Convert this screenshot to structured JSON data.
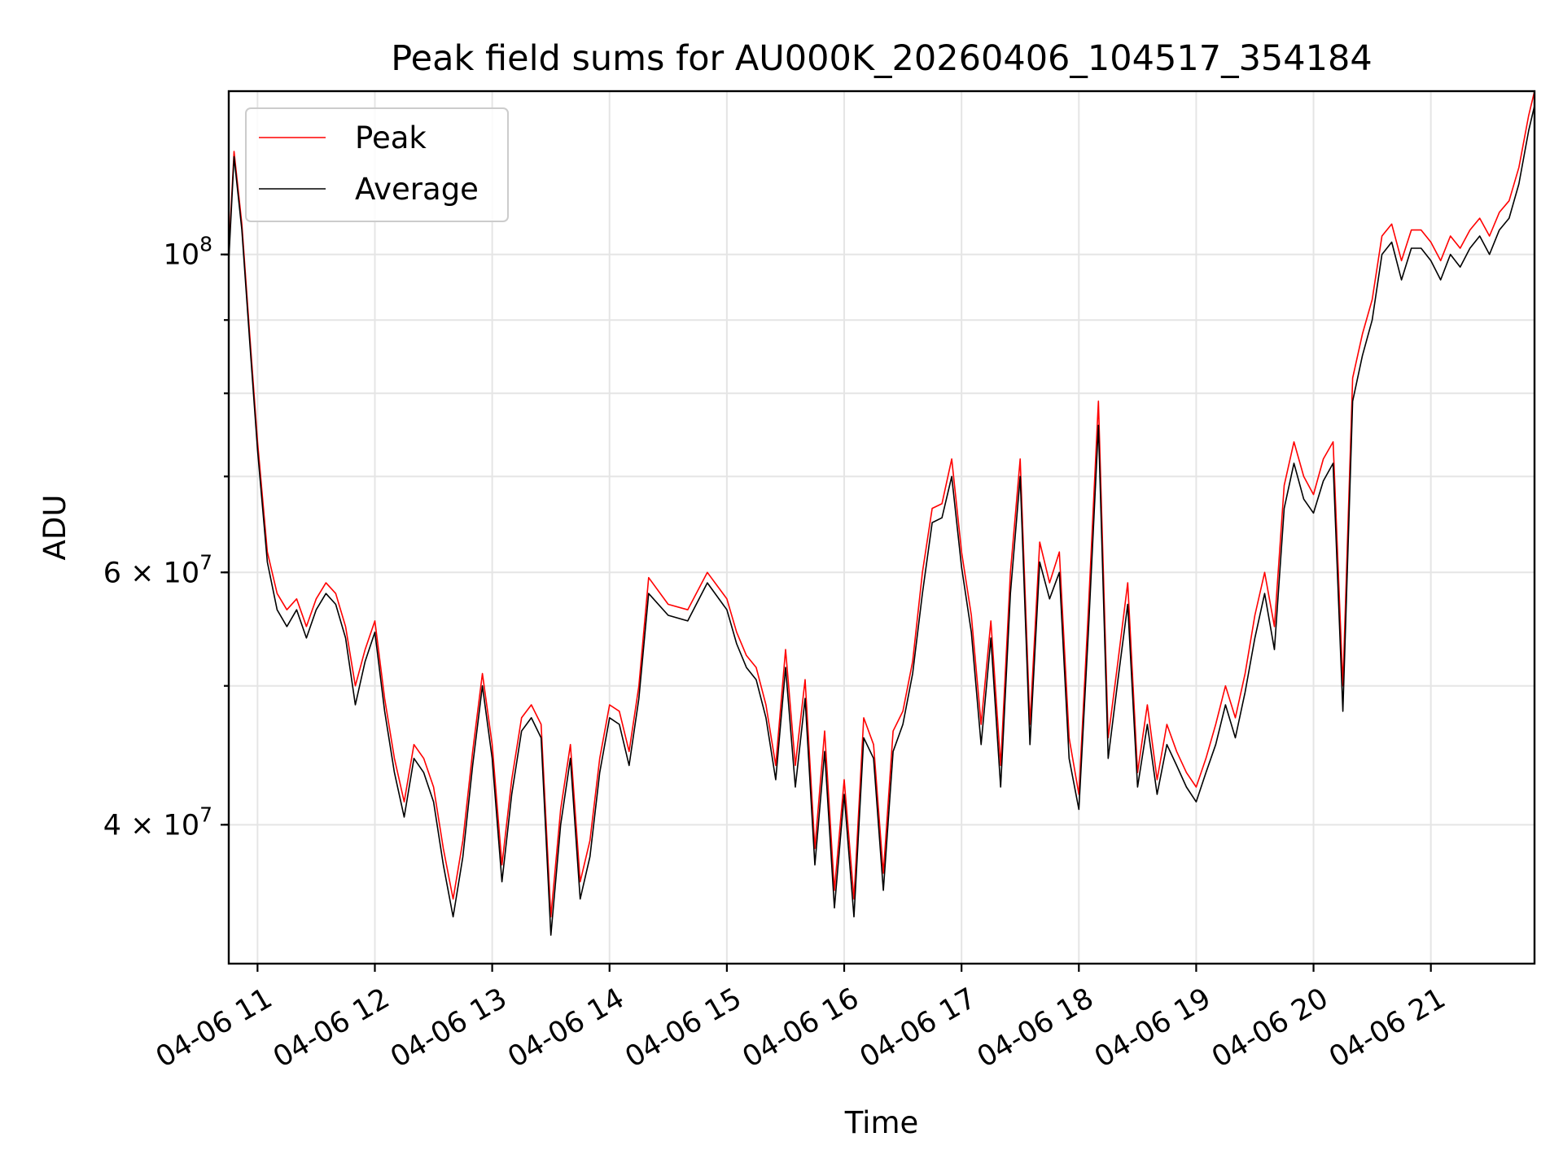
{
  "chart_data": {
    "type": "line",
    "title": "Peak field sums for AU000K_20260406_104517_354184",
    "xlabel": "Time",
    "ylabel": "ADU",
    "yscale": "log",
    "ylim": [
      32000000,
      130000000
    ],
    "xlim": [
      "2026-04-06T10:45:17",
      "2026-04-06T21:53:00"
    ],
    "x_ticks": [
      "04-06 11",
      "04-06 12",
      "04-06 13",
      "04-06 14",
      "04-06 15",
      "04-06 16",
      "04-06 17",
      "04-06 18",
      "04-06 19",
      "04-06 20",
      "04-06 21"
    ],
    "y_ticks": [
      {
        "value": 100000000,
        "mantissa": "10",
        "exponent": "8"
      },
      {
        "value": 60000000,
        "mantissa": "6 × 10",
        "exponent": "7"
      },
      {
        "value": 40000000,
        "mantissa": "4 × 10",
        "exponent": "7"
      }
    ],
    "grid": true,
    "legend_position": "upper-left",
    "series": [
      {
        "name": "Peak",
        "color": "#ff0000",
        "x": [
          "2026-04-06T10:45:17",
          "2026-04-06T10:48:00",
          "2026-04-06T10:52:00",
          "2026-04-06T10:56:00",
          "2026-04-06T11:00:00",
          "2026-04-06T11:05:00",
          "2026-04-06T11:10:00",
          "2026-04-06T11:15:00",
          "2026-04-06T11:20:00",
          "2026-04-06T11:25:00",
          "2026-04-06T11:30:00",
          "2026-04-06T11:35:00",
          "2026-04-06T11:40:00",
          "2026-04-06T11:45:00",
          "2026-04-06T11:50:00",
          "2026-04-06T11:55:00",
          "2026-04-06T12:00:00",
          "2026-04-06T12:05:00",
          "2026-04-06T12:10:00",
          "2026-04-06T12:15:00",
          "2026-04-06T12:20:00",
          "2026-04-06T12:25:00",
          "2026-04-06T12:30:00",
          "2026-04-06T12:35:00",
          "2026-04-06T12:40:00",
          "2026-04-06T12:45:00",
          "2026-04-06T12:50:00",
          "2026-04-06T12:55:00",
          "2026-04-06T13:00:00",
          "2026-04-06T13:05:00",
          "2026-04-06T13:10:00",
          "2026-04-06T13:15:00",
          "2026-04-06T13:20:00",
          "2026-04-06T13:25:00",
          "2026-04-06T13:30:00",
          "2026-04-06T13:35:00",
          "2026-04-06T13:40:00",
          "2026-04-06T13:45:00",
          "2026-04-06T13:50:00",
          "2026-04-06T13:55:00",
          "2026-04-06T14:00:00",
          "2026-04-06T14:05:00",
          "2026-04-06T14:10:00",
          "2026-04-06T14:15:00",
          "2026-04-06T14:20:00",
          "2026-04-06T14:30:00",
          "2026-04-06T14:40:00",
          "2026-04-06T14:50:00",
          "2026-04-06T15:00:00",
          "2026-04-06T15:05:00",
          "2026-04-06T15:10:00",
          "2026-04-06T15:15:00",
          "2026-04-06T15:20:00",
          "2026-04-06T15:25:00",
          "2026-04-06T15:30:00",
          "2026-04-06T15:35:00",
          "2026-04-06T15:40:00",
          "2026-04-06T15:45:00",
          "2026-04-06T15:50:00",
          "2026-04-06T15:55:00",
          "2026-04-06T16:00:00",
          "2026-04-06T16:05:00",
          "2026-04-06T16:10:00",
          "2026-04-06T16:15:00",
          "2026-04-06T16:20:00",
          "2026-04-06T16:25:00",
          "2026-04-06T16:30:00",
          "2026-04-06T16:35:00",
          "2026-04-06T16:40:00",
          "2026-04-06T16:45:00",
          "2026-04-06T16:50:00",
          "2026-04-06T16:55:00",
          "2026-04-06T17:00:00",
          "2026-04-06T17:05:00",
          "2026-04-06T17:10:00",
          "2026-04-06T17:15:00",
          "2026-04-06T17:20:00",
          "2026-04-06T17:25:00",
          "2026-04-06T17:30:00",
          "2026-04-06T17:35:00",
          "2026-04-06T17:40:00",
          "2026-04-06T17:45:00",
          "2026-04-06T17:50:00",
          "2026-04-06T17:55:00",
          "2026-04-06T18:00:00",
          "2026-04-06T18:05:00",
          "2026-04-06T18:10:00",
          "2026-04-06T18:15:00",
          "2026-04-06T18:20:00",
          "2026-04-06T18:25:00",
          "2026-04-06T18:30:00",
          "2026-04-06T18:35:00",
          "2026-04-06T18:40:00",
          "2026-04-06T18:45:00",
          "2026-04-06T18:50:00",
          "2026-04-06T18:55:00",
          "2026-04-06T19:00:00",
          "2026-04-06T19:05:00",
          "2026-04-06T19:10:00",
          "2026-04-06T19:15:00",
          "2026-04-06T19:20:00",
          "2026-04-06T19:25:00",
          "2026-04-06T19:30:00",
          "2026-04-06T19:35:00",
          "2026-04-06T19:40:00",
          "2026-04-06T19:45:00",
          "2026-04-06T19:50:00",
          "2026-04-06T19:55:00",
          "2026-04-06T20:00:00",
          "2026-04-06T20:05:00",
          "2026-04-06T20:10:00",
          "2026-04-06T20:15:00",
          "2026-04-06T20:20:00",
          "2026-04-06T20:25:00",
          "2026-04-06T20:30:00",
          "2026-04-06T20:35:00",
          "2026-04-06T20:40:00",
          "2026-04-06T20:45:00",
          "2026-04-06T20:50:00",
          "2026-04-06T20:55:00",
          "2026-04-06T21:00:00",
          "2026-04-06T21:05:00",
          "2026-04-06T21:10:00",
          "2026-04-06T21:15:00",
          "2026-04-06T21:20:00",
          "2026-04-06T21:25:00",
          "2026-04-06T21:30:00",
          "2026-04-06T21:35:00",
          "2026-04-06T21:40:00",
          "2026-04-06T21:45:00",
          "2026-04-06T21:50:00",
          "2026-04-06T21:53:00"
        ],
        "y": [
          100000000,
          118000000,
          105000000,
          88000000,
          74000000,
          62000000,
          58000000,
          56500000,
          57500000,
          55000000,
          57500000,
          59000000,
          58000000,
          55000000,
          50000000,
          53000000,
          55500000,
          49000000,
          44500000,
          41500000,
          45500000,
          44500000,
          42500000,
          38500000,
          35500000,
          39000000,
          45000000,
          51000000,
          45500000,
          37500000,
          43000000,
          47500000,
          48500000,
          47000000,
          34500000,
          41000000,
          45500000,
          36500000,
          39000000,
          44500000,
          48500000,
          48000000,
          45000000,
          50000000,
          59500000,
          57000000,
          56500000,
          60000000,
          57500000,
          54500000,
          52500000,
          51500000,
          48500000,
          44000000,
          53000000,
          44000000,
          50500000,
          38500000,
          46500000,
          36000000,
          43000000,
          35500000,
          47500000,
          45500000,
          37000000,
          46500000,
          48000000,
          52000000,
          60000000,
          66500000,
          67000000,
          72000000,
          62000000,
          56000000,
          47000000,
          55500000,
          44000000,
          60000000,
          72000000,
          47000000,
          63000000,
          59000000,
          62000000,
          46000000,
          42000000,
          57000000,
          79000000,
          46000000,
          52000000,
          59000000,
          43500000,
          48500000,
          43000000,
          47000000,
          45000000,
          43500000,
          42500000,
          44500000,
          47000000,
          50000000,
          47500000,
          51000000,
          56000000,
          60000000,
          55000000,
          69000000,
          74000000,
          70000000,
          68000000,
          72000000,
          74000000,
          50000000,
          82000000,
          88000000,
          93000000,
          103000000,
          105000000,
          99000000,
          104000000,
          104000000,
          102000000,
          99000000,
          103000000,
          101000000,
          104000000,
          106000000,
          103000000,
          107000000,
          109000000,
          115000000,
          125000000,
          130000000
        ],
        "values_note": ""
      },
      {
        "name": "Average",
        "color": "#000000",
        "x": [
          "2026-04-06T10:45:17",
          "2026-04-06T10:48:00",
          "2026-04-06T10:52:00",
          "2026-04-06T10:56:00",
          "2026-04-06T11:00:00",
          "2026-04-06T11:05:00",
          "2026-04-06T11:10:00",
          "2026-04-06T11:15:00",
          "2026-04-06T11:20:00",
          "2026-04-06T11:25:00",
          "2026-04-06T11:30:00",
          "2026-04-06T11:35:00",
          "2026-04-06T11:40:00",
          "2026-04-06T11:45:00",
          "2026-04-06T11:50:00",
          "2026-04-06T11:55:00",
          "2026-04-06T12:00:00",
          "2026-04-06T12:05:00",
          "2026-04-06T12:10:00",
          "2026-04-06T12:15:00",
          "2026-04-06T12:20:00",
          "2026-04-06T12:25:00",
          "2026-04-06T12:30:00",
          "2026-04-06T12:35:00",
          "2026-04-06T12:40:00",
          "2026-04-06T12:45:00",
          "2026-04-06T12:50:00",
          "2026-04-06T12:55:00",
          "2026-04-06T13:00:00",
          "2026-04-06T13:05:00",
          "2026-04-06T13:10:00",
          "2026-04-06T13:15:00",
          "2026-04-06T13:20:00",
          "2026-04-06T13:25:00",
          "2026-04-06T13:30:00",
          "2026-04-06T13:35:00",
          "2026-04-06T13:40:00",
          "2026-04-06T13:45:00",
          "2026-04-06T13:50:00",
          "2026-04-06T13:55:00",
          "2026-04-06T14:00:00",
          "2026-04-06T14:05:00",
          "2026-04-06T14:10:00",
          "2026-04-06T14:15:00",
          "2026-04-06T14:20:00",
          "2026-04-06T14:30:00",
          "2026-04-06T14:40:00",
          "2026-04-06T14:50:00",
          "2026-04-06T15:00:00",
          "2026-04-06T15:05:00",
          "2026-04-06T15:10:00",
          "2026-04-06T15:15:00",
          "2026-04-06T15:20:00",
          "2026-04-06T15:25:00",
          "2026-04-06T15:30:00",
          "2026-04-06T15:35:00",
          "2026-04-06T15:40:00",
          "2026-04-06T15:45:00",
          "2026-04-06T15:50:00",
          "2026-04-06T15:55:00",
          "2026-04-06T16:00:00",
          "2026-04-06T16:05:00",
          "2026-04-06T16:10:00",
          "2026-04-06T16:15:00",
          "2026-04-06T16:20:00",
          "2026-04-06T16:25:00",
          "2026-04-06T16:30:00",
          "2026-04-06T16:35:00",
          "2026-04-06T16:40:00",
          "2026-04-06T16:45:00",
          "2026-04-06T16:50:00",
          "2026-04-06T16:55:00",
          "2026-04-06T17:00:00",
          "2026-04-06T17:05:00",
          "2026-04-06T17:10:00",
          "2026-04-06T17:15:00",
          "2026-04-06T17:20:00",
          "2026-04-06T17:25:00",
          "2026-04-06T17:30:00",
          "2026-04-06T17:35:00",
          "2026-04-06T17:40:00",
          "2026-04-06T17:45:00",
          "2026-04-06T17:50:00",
          "2026-04-06T17:55:00",
          "2026-04-06T18:00:00",
          "2026-04-06T18:05:00",
          "2026-04-06T18:10:00",
          "2026-04-06T18:15:00",
          "2026-04-06T18:20:00",
          "2026-04-06T18:25:00",
          "2026-04-06T18:30:00",
          "2026-04-06T18:35:00",
          "2026-04-06T18:40:00",
          "2026-04-06T18:45:00",
          "2026-04-06T18:50:00",
          "2026-04-06T18:55:00",
          "2026-04-06T19:00:00",
          "2026-04-06T19:05:00",
          "2026-04-06T19:10:00",
          "2026-04-06T19:15:00",
          "2026-04-06T19:20:00",
          "2026-04-06T19:25:00",
          "2026-04-06T19:30:00",
          "2026-04-06T19:35:00",
          "2026-04-06T19:40:00",
          "2026-04-06T19:45:00",
          "2026-04-06T19:50:00",
          "2026-04-06T19:55:00",
          "2026-04-06T20:00:00",
          "2026-04-06T20:05:00",
          "2026-04-06T20:10:00",
          "2026-04-06T20:15:00",
          "2026-04-06T20:20:00",
          "2026-04-06T20:25:00",
          "2026-04-06T20:30:00",
          "2026-04-06T20:35:00",
          "2026-04-06T20:40:00",
          "2026-04-06T20:45:00",
          "2026-04-06T20:50:00",
          "2026-04-06T20:55:00",
          "2026-04-06T21:00:00",
          "2026-04-06T21:05:00",
          "2026-04-06T21:10:00",
          "2026-04-06T21:15:00",
          "2026-04-06T21:20:00",
          "2026-04-06T21:25:00",
          "2026-04-06T21:30:00",
          "2026-04-06T21:35:00",
          "2026-04-06T21:40:00",
          "2026-04-06T21:45:00",
          "2026-04-06T21:50:00",
          "2026-04-06T21:53:00"
        ],
        "y": [
          99000000,
          117000000,
          104000000,
          87000000,
          73000000,
          61000000,
          56500000,
          55000000,
          56500000,
          54000000,
          56500000,
          58000000,
          57000000,
          54000000,
          48500000,
          52000000,
          54500000,
          48000000,
          43500000,
          40500000,
          44500000,
          43500000,
          41500000,
          37500000,
          34500000,
          38000000,
          44000000,
          50000000,
          44500000,
          36500000,
          42000000,
          46500000,
          47500000,
          46000000,
          33500000,
          40000000,
          44500000,
          35500000,
          38000000,
          43500000,
          47500000,
          47000000,
          44000000,
          49000000,
          58000000,
          56000000,
          55500000,
          59000000,
          56500000,
          53500000,
          51500000,
          50500000,
          47500000,
          43000000,
          51500000,
          42500000,
          49000000,
          37500000,
          45000000,
          35000000,
          42000000,
          34500000,
          46000000,
          44500000,
          36000000,
          45000000,
          47000000,
          51000000,
          58000000,
          65000000,
          65500000,
          70000000,
          60500000,
          54500000,
          45500000,
          54000000,
          42500000,
          58000000,
          70000000,
          45500000,
          61000000,
          57500000,
          60000000,
          44500000,
          41000000,
          55000000,
          76000000,
          44500000,
          50500000,
          57000000,
          42500000,
          47000000,
          42000000,
          45500000,
          44000000,
          42500000,
          41500000,
          43500000,
          45500000,
          48500000,
          46000000,
          49500000,
          54000000,
          58000000,
          53000000,
          66500000,
          71500000,
          67500000,
          66000000,
          69500000,
          71500000,
          48000000,
          79000000,
          85000000,
          90000000,
          100000000,
          102000000,
          96000000,
          101000000,
          101000000,
          99000000,
          96000000,
          100000000,
          98000000,
          101000000,
          103000000,
          100000000,
          104000000,
          106000000,
          112000000,
          122000000,
          127000000
        ]
      }
    ]
  }
}
